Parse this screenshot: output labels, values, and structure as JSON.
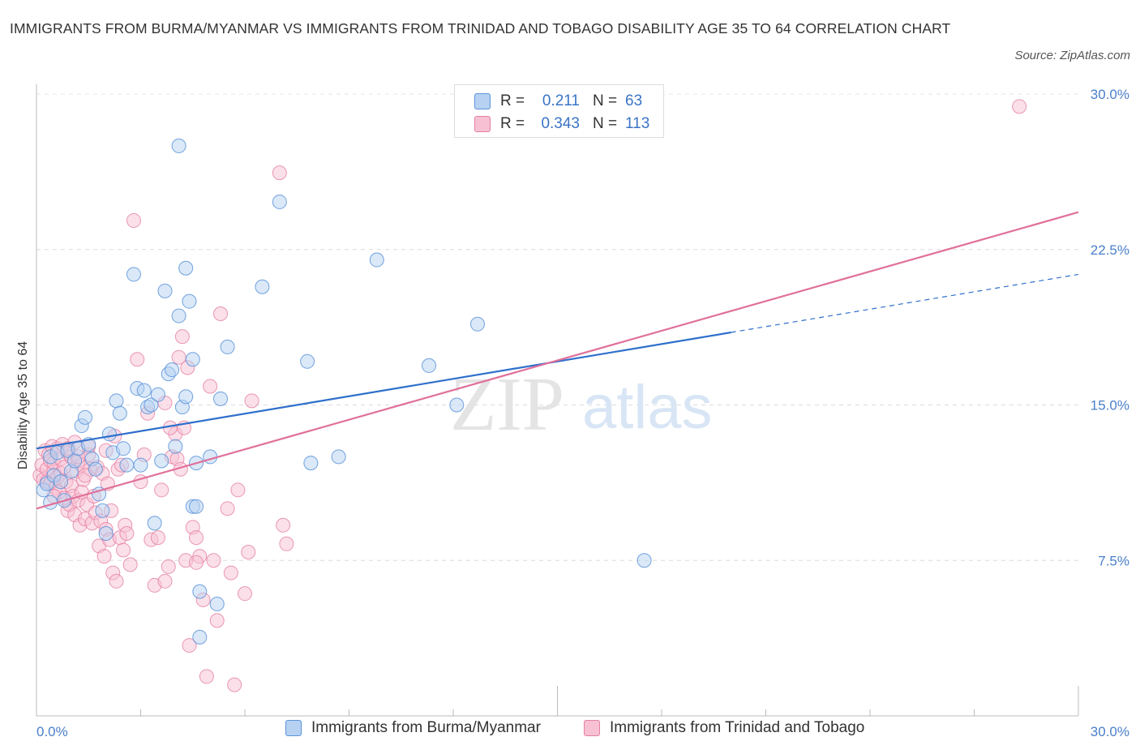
{
  "title": "IMMIGRANTS FROM BURMA/MYANMAR VS IMMIGRANTS FROM TRINIDAD AND TOBAGO DISABILITY AGE 35 TO 64 CORRELATION CHART",
  "source": "Source: ZipAtlas.com",
  "legend": {
    "rows": [
      {
        "r_label": "R =",
        "r_value": "0.211",
        "n_label": "N =",
        "n_value": "63"
      },
      {
        "r_label": "R =",
        "r_value": "0.343",
        "n_label": "N =",
        "n_value": "113"
      }
    ]
  },
  "bottom_legend": {
    "series1": "Immigrants from Burma/Myanmar",
    "series2": "Immigrants from Trinidad and Tobago"
  },
  "watermark": {
    "zip": "ZIP",
    "atlas": "atlas"
  },
  "colors": {
    "blue": "#5b93d9",
    "blue_fill": "#b6d1f2",
    "blue_line": "#2e6fcc",
    "pink": "#e57fa2",
    "pink_fill": "#f7c1d3",
    "pink_line": "#e0709a",
    "axis_text": "#4a7fc9"
  },
  "chart_data": {
    "type": "scatter",
    "title": "IMMIGRANTS FROM BURMA/MYANMAR VS IMMIGRANTS FROM TRINIDAD AND TOBAGO DISABILITY AGE 35 TO 64 CORRELATION CHART",
    "xlabel": "",
    "ylabel": "Disability Age 35 to 64",
    "xlim": [
      0,
      30
    ],
    "ylim": [
      0,
      30
    ],
    "x_tick_labels": [
      "0.0%",
      "30.0%"
    ],
    "y_ticks": [
      7.5,
      15.0,
      22.5,
      30.0
    ],
    "y_tick_labels": [
      "7.5%",
      "15.0%",
      "22.5%",
      "30.0%"
    ],
    "grid": true,
    "legend_position": "top-center",
    "series": [
      {
        "name": "Immigrants from Burma/Myanmar",
        "R": 0.211,
        "N": 63,
        "trend": {
          "x0": 0,
          "y0": 12.9,
          "x1": 20,
          "y1": 18.5,
          "dashed_to_x": 30,
          "dashed_to_y": 21.3
        },
        "points": [
          [
            0.2,
            10.9
          ],
          [
            0.3,
            11.2
          ],
          [
            0.4,
            12.5
          ],
          [
            0.4,
            10.3
          ],
          [
            0.5,
            11.6
          ],
          [
            0.6,
            12.7
          ],
          [
            0.7,
            11.3
          ],
          [
            0.8,
            10.4
          ],
          [
            0.9,
            12.8
          ],
          [
            1.0,
            11.8
          ],
          [
            1.1,
            12.3
          ],
          [
            1.2,
            12.9
          ],
          [
            1.3,
            14.0
          ],
          [
            1.4,
            14.4
          ],
          [
            1.5,
            13.1
          ],
          [
            1.6,
            12.4
          ],
          [
            1.7,
            11.9
          ],
          [
            1.8,
            10.7
          ],
          [
            1.9,
            9.9
          ],
          [
            2.0,
            8.8
          ],
          [
            2.1,
            13.6
          ],
          [
            2.2,
            12.7
          ],
          [
            2.3,
            15.2
          ],
          [
            2.4,
            14.6
          ],
          [
            2.5,
            12.9
          ],
          [
            2.6,
            12.1
          ],
          [
            2.8,
            21.3
          ],
          [
            2.9,
            15.8
          ],
          [
            3.0,
            12.1
          ],
          [
            3.1,
            15.7
          ],
          [
            3.2,
            14.9
          ],
          [
            3.3,
            15.0
          ],
          [
            3.4,
            9.3
          ],
          [
            3.5,
            15.5
          ],
          [
            3.6,
            12.3
          ],
          [
            3.7,
            20.5
          ],
          [
            3.8,
            16.5
          ],
          [
            3.9,
            16.7
          ],
          [
            4.0,
            13.0
          ],
          [
            4.1,
            19.3
          ],
          [
            4.2,
            14.9
          ],
          [
            4.3,
            21.6
          ],
          [
            4.4,
            20.0
          ],
          [
            4.5,
            17.2
          ],
          [
            4.6,
            12.2
          ],
          [
            4.7,
            6.0
          ],
          [
            4.1,
            27.5
          ],
          [
            4.3,
            15.4
          ],
          [
            4.5,
            10.1
          ],
          [
            4.6,
            10.1
          ],
          [
            4.7,
            3.8
          ],
          [
            5.0,
            12.5
          ],
          [
            5.2,
            5.4
          ],
          [
            5.3,
            15.3
          ],
          [
            5.5,
            17.8
          ],
          [
            6.5,
            20.7
          ],
          [
            7.0,
            24.8
          ],
          [
            7.8,
            17.1
          ],
          [
            7.9,
            12.2
          ],
          [
            8.7,
            12.5
          ],
          [
            9.8,
            22.0
          ],
          [
            11.3,
            16.9
          ],
          [
            12.1,
            15.0
          ],
          [
            12.7,
            18.9
          ],
          [
            17.5,
            7.5
          ]
        ]
      },
      {
        "name": "Immigrants from Trinidad and Tobago",
        "R": 0.343,
        "N": 113,
        "trend": {
          "x0": 0,
          "y0": 10.0,
          "x1": 30,
          "y1": 24.3
        },
        "points": [
          [
            0.1,
            11.6
          ],
          [
            0.15,
            12.1
          ],
          [
            0.2,
            11.4
          ],
          [
            0.25,
            12.8
          ],
          [
            0.3,
            11.9
          ],
          [
            0.3,
            11.3
          ],
          [
            0.35,
            12.6
          ],
          [
            0.4,
            11.2
          ],
          [
            0.4,
            12.3
          ],
          [
            0.45,
            13.0
          ],
          [
            0.5,
            11.8
          ],
          [
            0.5,
            12.2
          ],
          [
            0.55,
            11.0
          ],
          [
            0.6,
            12.9
          ],
          [
            0.6,
            11.5
          ],
          [
            0.65,
            10.8
          ],
          [
            0.7,
            12.4
          ],
          [
            0.7,
            11.7
          ],
          [
            0.75,
            13.1
          ],
          [
            0.8,
            12.0
          ],
          [
            0.8,
            10.5
          ],
          [
            0.85,
            11.3
          ],
          [
            0.9,
            12.7
          ],
          [
            0.9,
            9.9
          ],
          [
            0.95,
            10.2
          ],
          [
            1.0,
            12.5
          ],
          [
            1.0,
            11.1
          ],
          [
            1.05,
            10.6
          ],
          [
            1.1,
            13.2
          ],
          [
            1.1,
            9.7
          ],
          [
            1.15,
            11.8
          ],
          [
            1.2,
            12.3
          ],
          [
            1.2,
            10.4
          ],
          [
            1.25,
            9.2
          ],
          [
            1.3,
            12.1
          ],
          [
            1.3,
            10.8
          ],
          [
            1.35,
            11.4
          ],
          [
            1.4,
            9.5
          ],
          [
            1.45,
            10.2
          ],
          [
            1.5,
            12.6
          ],
          [
            1.5,
            13.0
          ],
          [
            1.55,
            11.9
          ],
          [
            1.6,
            9.3
          ],
          [
            1.65,
            10.6
          ],
          [
            1.7,
            9.8
          ],
          [
            1.75,
            12.0
          ],
          [
            1.8,
            8.2
          ],
          [
            1.85,
            9.4
          ],
          [
            1.9,
            11.7
          ],
          [
            1.95,
            7.7
          ],
          [
            2.0,
            12.8
          ],
          [
            2.0,
            9.0
          ],
          [
            2.05,
            11.2
          ],
          [
            2.1,
            8.5
          ],
          [
            2.15,
            9.9
          ],
          [
            2.2,
            6.9
          ],
          [
            2.25,
            13.5
          ],
          [
            2.3,
            6.5
          ],
          [
            2.35,
            11.9
          ],
          [
            2.4,
            8.6
          ],
          [
            2.45,
            12.1
          ],
          [
            2.5,
            8.0
          ],
          [
            2.55,
            9.2
          ],
          [
            2.6,
            8.8
          ],
          [
            2.7,
            7.3
          ],
          [
            2.8,
            23.9
          ],
          [
            2.9,
            17.2
          ],
          [
            3.0,
            11.3
          ],
          [
            3.1,
            12.6
          ],
          [
            3.2,
            14.6
          ],
          [
            3.3,
            8.5
          ],
          [
            3.4,
            6.3
          ],
          [
            3.5,
            8.6
          ],
          [
            3.6,
            10.9
          ],
          [
            3.7,
            6.5
          ],
          [
            3.8,
            7.2
          ],
          [
            3.9,
            12.5
          ],
          [
            4.0,
            13.6
          ],
          [
            4.05,
            12.4
          ],
          [
            4.1,
            17.3
          ],
          [
            4.15,
            11.9
          ],
          [
            4.2,
            18.3
          ],
          [
            4.25,
            13.9
          ],
          [
            4.3,
            7.5
          ],
          [
            4.35,
            16.8
          ],
          [
            4.4,
            3.4
          ],
          [
            4.5,
            9.1
          ],
          [
            4.6,
            8.6
          ],
          [
            4.7,
            7.7
          ],
          [
            4.8,
            5.6
          ],
          [
            4.9,
            1.9
          ],
          [
            5.0,
            15.9
          ],
          [
            5.1,
            7.5
          ],
          [
            5.2,
            4.6
          ],
          [
            5.3,
            19.4
          ],
          [
            5.5,
            10.0
          ],
          [
            5.6,
            6.9
          ],
          [
            5.7,
            1.5
          ],
          [
            5.8,
            10.9
          ],
          [
            6.0,
            5.9
          ],
          [
            6.1,
            7.9
          ],
          [
            6.2,
            15.2
          ],
          [
            7.0,
            26.2
          ],
          [
            7.1,
            9.2
          ],
          [
            7.2,
            8.3
          ],
          [
            4.6,
            7.4
          ],
          [
            3.7,
            15.1
          ],
          [
            3.85,
            13.9
          ],
          [
            28.3,
            29.4
          ],
          [
            1.2,
            12.5
          ],
          [
            0.5,
            10.6
          ],
          [
            0.9,
            12.9
          ],
          [
            1.4,
            11.6
          ]
        ]
      }
    ]
  }
}
